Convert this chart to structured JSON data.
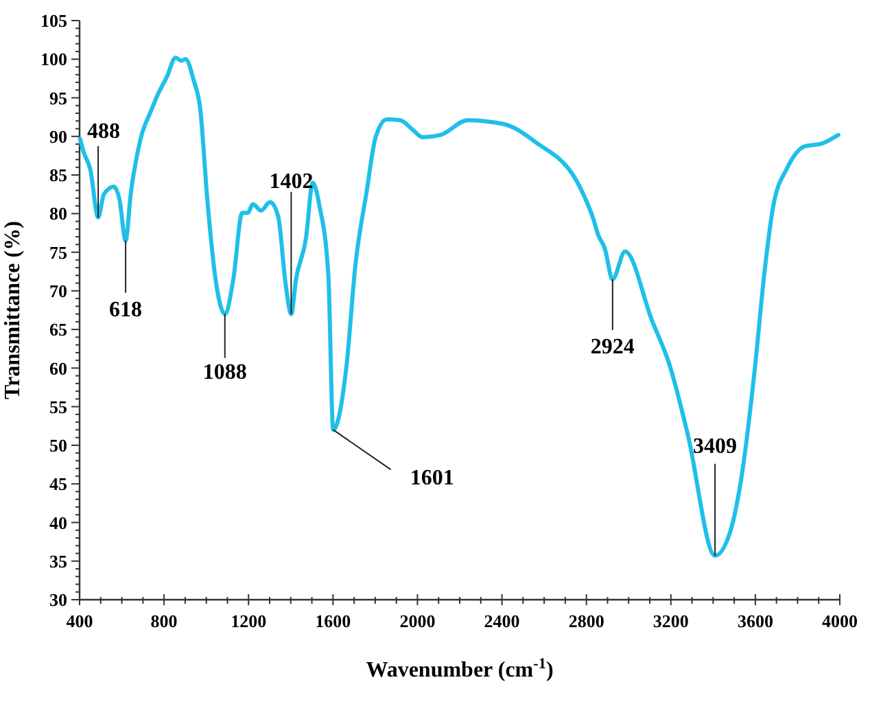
{
  "chart_data": {
    "type": "line",
    "xlabel": "Wavenumber (cm$^{-1}$)",
    "ylabel": "Transmittance (%)",
    "xlim": [
      400,
      4000
    ],
    "ylim": [
      30,
      105
    ],
    "xticks": [
      400,
      {
        "value": 500,
        "label": null
      },
      {
        "value": 600,
        "label": null
      },
      {
        "value": 700,
        "label": null
      },
      800,
      {
        "value": 900,
        "label": null
      },
      {
        "value": 1000,
        "label": null
      },
      {
        "value": 1100,
        "label": null
      },
      1200,
      {
        "value": 1300,
        "label": null
      },
      {
        "value": 1400,
        "label": null
      },
      {
        "value": 1500,
        "label": null
      },
      1600,
      {
        "value": 1700,
        "label": null
      },
      {
        "value": 1800,
        "label": null
      },
      {
        "value": 1900,
        "label": null
      },
      2000,
      {
        "value": 2100,
        "label": null
      },
      {
        "value": 2200,
        "label": null
      },
      {
        "value": 2300,
        "label": null
      },
      2400,
      {
        "value": 2500,
        "label": null
      },
      {
        "value": 2600,
        "label": null
      },
      {
        "value": 2700,
        "label": null
      },
      2800,
      {
        "value": 2900,
        "label": null
      },
      {
        "value": 3000,
        "label": null
      },
      {
        "value": 3100,
        "label": null
      },
      3200,
      {
        "value": 3300,
        "label": null
      },
      {
        "value": 3400,
        "label": null
      },
      {
        "value": 3500,
        "label": null
      },
      3600,
      {
        "value": 3700,
        "label": null
      },
      {
        "value": 3800,
        "label": null
      },
      {
        "value": 3900,
        "label": null
      },
      4000
    ],
    "yticks": [
      30,
      {
        "value": 31,
        "label": null
      },
      {
        "value": 32,
        "label": null
      },
      {
        "value": 33,
        "label": null
      },
      {
        "value": 34,
        "label": null
      },
      35,
      {
        "value": 36,
        "label": null
      },
      {
        "value": 37,
        "label": null
      },
      {
        "value": 38,
        "label": null
      },
      {
        "value": 39,
        "label": null
      },
      40,
      {
        "value": 41,
        "label": null
      },
      {
        "value": 42,
        "label": null
      },
      {
        "value": 43,
        "label": null
      },
      {
        "value": 44,
        "label": null
      },
      45,
      {
        "value": 46,
        "label": null
      },
      {
        "value": 47,
        "label": null
      },
      {
        "value": 48,
        "label": null
      },
      {
        "value": 49,
        "label": null
      },
      50,
      {
        "value": 51,
        "label": null
      },
      {
        "value": 52,
        "label": null
      },
      {
        "value": 53,
        "label": null
      },
      {
        "value": 54,
        "label": null
      },
      55,
      {
        "value": 56,
        "label": null
      },
      {
        "value": 57,
        "label": null
      },
      {
        "value": 58,
        "label": null
      },
      {
        "value": 59,
        "label": null
      },
      60,
      {
        "value": 61,
        "label": null
      },
      {
        "value": 62,
        "label": null
      },
      {
        "value": 63,
        "label": null
      },
      {
        "value": 64,
        "label": null
      },
      65,
      {
        "value": 66,
        "label": null
      },
      {
        "value": 67,
        "label": null
      },
      {
        "value": 68,
        "label": null
      },
      {
        "value": 69,
        "label": null
      },
      70,
      {
        "value": 71,
        "label": null
      },
      {
        "value": 72,
        "label": null
      },
      {
        "value": 73,
        "label": null
      },
      {
        "value": 74,
        "label": null
      },
      75,
      {
        "value": 76,
        "label": null
      },
      {
        "value": 77,
        "label": null
      },
      {
        "value": 78,
        "label": null
      },
      {
        "value": 79,
        "label": null
      },
      80,
      {
        "value": 81,
        "label": null
      },
      {
        "value": 82,
        "label": null
      },
      {
        "value": 83,
        "label": null
      },
      {
        "value": 84,
        "label": null
      },
      85,
      {
        "value": 86,
        "label": null
      },
      {
        "value": 87,
        "label": null
      },
      {
        "value": 88,
        "label": null
      },
      {
        "value": 89,
        "label": null
      },
      90,
      {
        "value": 91,
        "label": null
      },
      {
        "value": 92,
        "label": null
      },
      {
        "value": 93,
        "label": null
      },
      {
        "value": 94,
        "label": null
      },
      95,
      {
        "value": 96,
        "label": null
      },
      {
        "value": 97,
        "label": null
      },
      {
        "value": 98,
        "label": null
      },
      {
        "value": 99,
        "label": null
      },
      100,
      {
        "value": 101,
        "label": null
      },
      {
        "value": 102,
        "label": null
      },
      {
        "value": 103,
        "label": null
      },
      {
        "value": 104,
        "label": null
      },
      105
    ],
    "grid": false,
    "marker": "none",
    "line_style": "solid",
    "series": [
      {
        "color": "#1ec0e8",
        "x": [
          402,
          419,
          451,
          488,
          515,
          562,
          589,
          618,
          642,
          689,
          738,
          770,
          813,
          855,
          881,
          902,
          940,
          972,
          1004,
          1047,
          1088,
          1128,
          1170,
          1196,
          1221,
          1259,
          1302,
          1340,
          1376,
          1402,
          1425,
          1472,
          1504,
          1536,
          1578,
          1601,
          1664,
          1706,
          1759,
          1802,
          1855,
          1919,
          1972,
          2025,
          2110,
          2238,
          2408,
          2557,
          2770,
          2833,
          2855,
          2887,
          2924,
          2983,
          3110,
          3195,
          3280,
          3409,
          3482,
          3535,
          3599,
          3642,
          3685,
          3749,
          3833,
          3918,
          3993
        ],
        "values": [
          89.7,
          88,
          85.7,
          79.5,
          82.5,
          83.5,
          81.8,
          76.5,
          82.5,
          89.7,
          93.3,
          95.4,
          97.7,
          100.2,
          99.8,
          100,
          97.3,
          93.4,
          82.1,
          70.9,
          67,
          71.5,
          80.1,
          80.1,
          81.2,
          80.4,
          81.5,
          79.7,
          70.8,
          67,
          71.5,
          76.8,
          84,
          81,
          72,
          52,
          60.3,
          73.3,
          82.8,
          89.9,
          92.2,
          92.1,
          91,
          89.9,
          90.2,
          92.1,
          91.6,
          89.3,
          83.4,
          79.3,
          77.3,
          75.5,
          71.5,
          75.1,
          66.2,
          60.3,
          51.4,
          35.7,
          38.9,
          46,
          60.3,
          72.1,
          81,
          85.8,
          88.7,
          89.1,
          90.2
        ]
      }
    ],
    "annotations": [
      {
        "text": "488",
        "x": 488,
        "y": 79.5
      },
      {
        "text": "618",
        "x": 618,
        "y": 76.5
      },
      {
        "text": "1088",
        "x": 1088,
        "y": 67
      },
      {
        "text": "1402",
        "x": 1402,
        "y": 67
      },
      {
        "text": "1601",
        "x": 1601,
        "y": 52
      },
      {
        "text": "2924",
        "x": 2924,
        "y": 71.5
      },
      {
        "text": "3409",
        "x": 3409,
        "y": 35.7
      }
    ]
  }
}
